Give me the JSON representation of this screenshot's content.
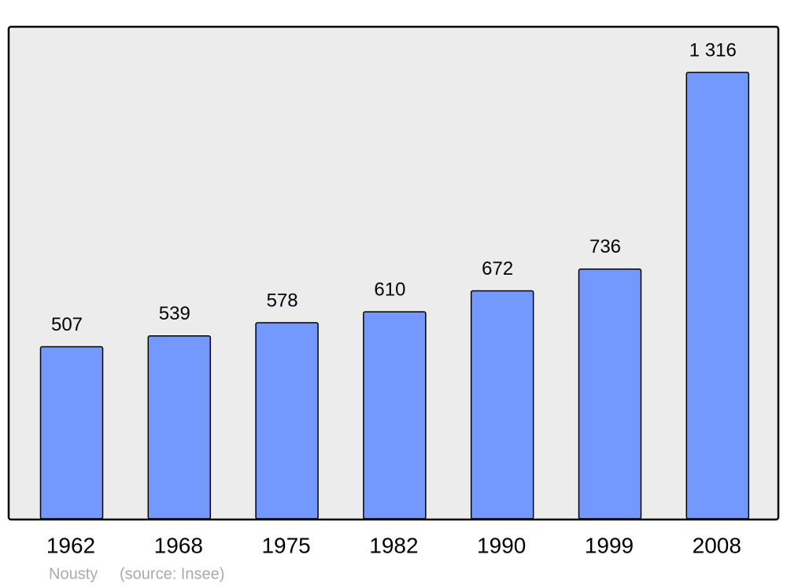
{
  "chart_data": {
    "type": "bar",
    "categories": [
      "1962",
      "1968",
      "1975",
      "1982",
      "1990",
      "1999",
      "2008"
    ],
    "values": [
      507,
      539,
      578,
      610,
      672,
      736,
      1316
    ],
    "value_labels": [
      "507",
      "539",
      "578",
      "610",
      "672",
      "736",
      "1 316"
    ],
    "color": "#7399ff",
    "place": "Nousty",
    "source": "(source: Insee)"
  }
}
